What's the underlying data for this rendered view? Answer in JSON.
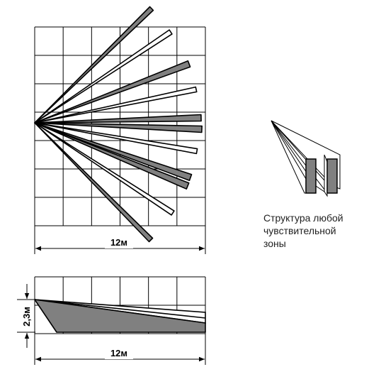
{
  "top_view": {
    "width_label": "12м"
  },
  "side_view": {
    "width_label": "12м",
    "height_label": "2,3м"
  },
  "zone_structure": {
    "caption_lines": [
      "Структура любой",
      "чувствительной",
      "зоны"
    ]
  },
  "colors": {
    "beam_fill": "#808080",
    "outline": "#000000",
    "grid": "#000000"
  }
}
